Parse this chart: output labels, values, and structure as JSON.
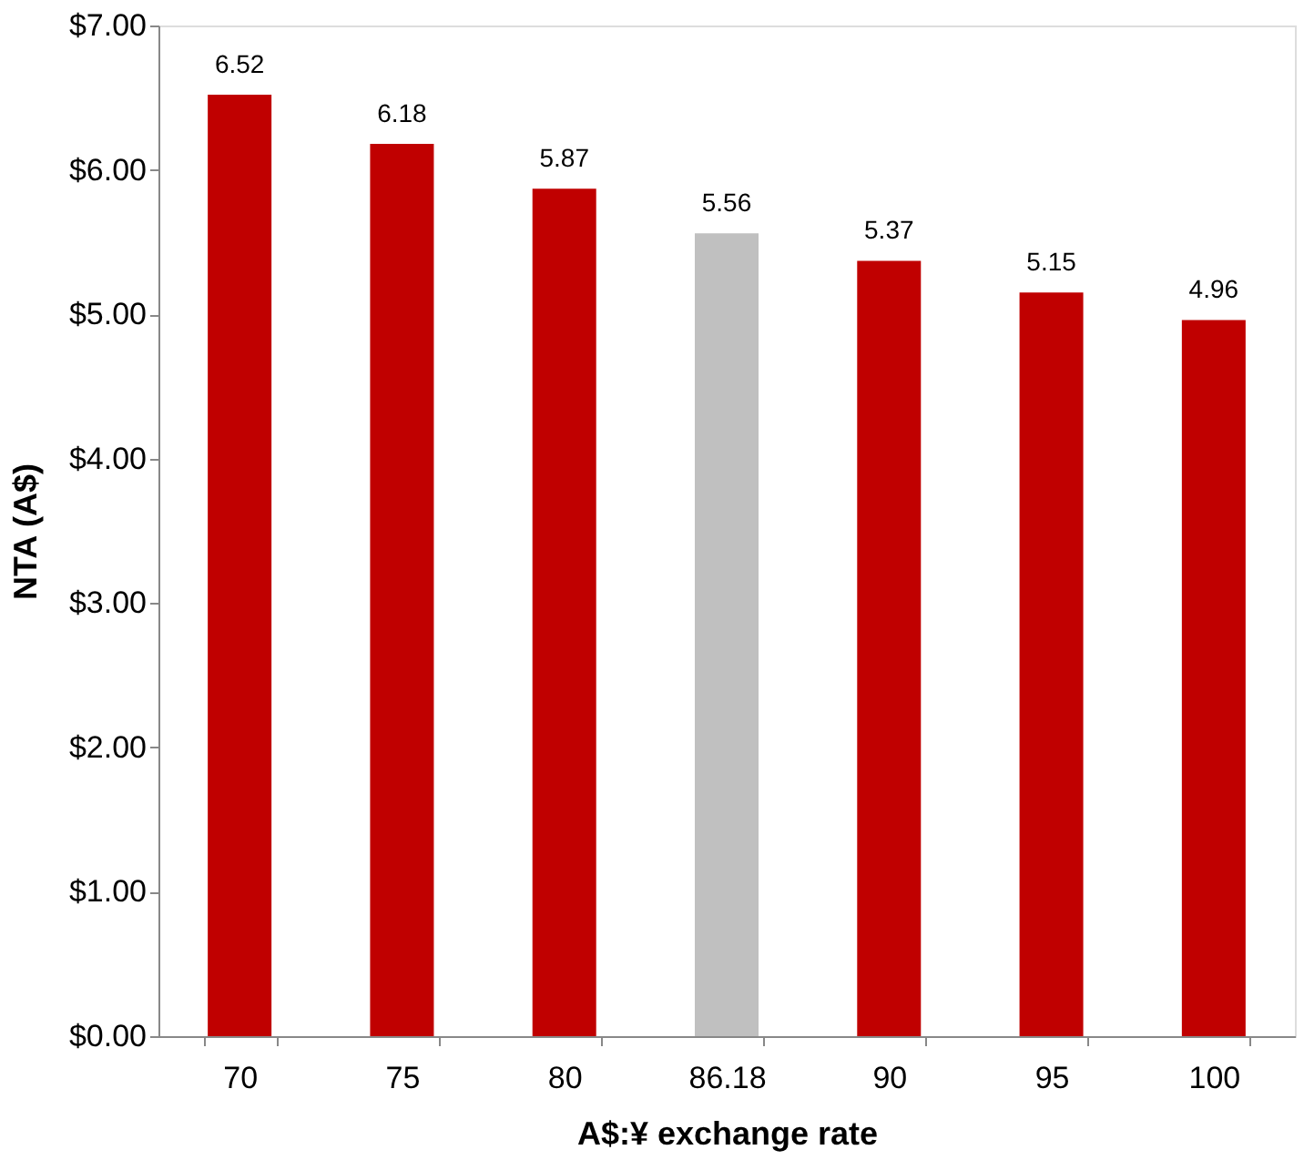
{
  "chart_data": {
    "type": "bar",
    "xlabel": "A$:¥ exchange rate",
    "ylabel": "NTA (A$)",
    "categories": [
      "70",
      "75",
      "80",
      "86.18",
      "90",
      "95",
      "100"
    ],
    "values": [
      6.52,
      6.18,
      5.87,
      5.56,
      5.37,
      5.15,
      4.96
    ],
    "colors": [
      "#c00000",
      "#c00000",
      "#c00000",
      "#c0c0c0",
      "#c00000",
      "#c00000",
      "#c00000"
    ],
    "ylim": [
      0,
      7
    ],
    "yticks": [
      {
        "value": 0,
        "label": "$0.00"
      },
      {
        "value": 1,
        "label": "$1.00"
      },
      {
        "value": 2,
        "label": "$2.00"
      },
      {
        "value": 3,
        "label": "$3.00"
      },
      {
        "value": 4,
        "label": "$4.00"
      },
      {
        "value": 5,
        "label": "$5.00"
      },
      {
        "value": 6,
        "label": "$6.00"
      },
      {
        "value": 7,
        "label": "$7.00"
      }
    ],
    "data_labels": true
  }
}
